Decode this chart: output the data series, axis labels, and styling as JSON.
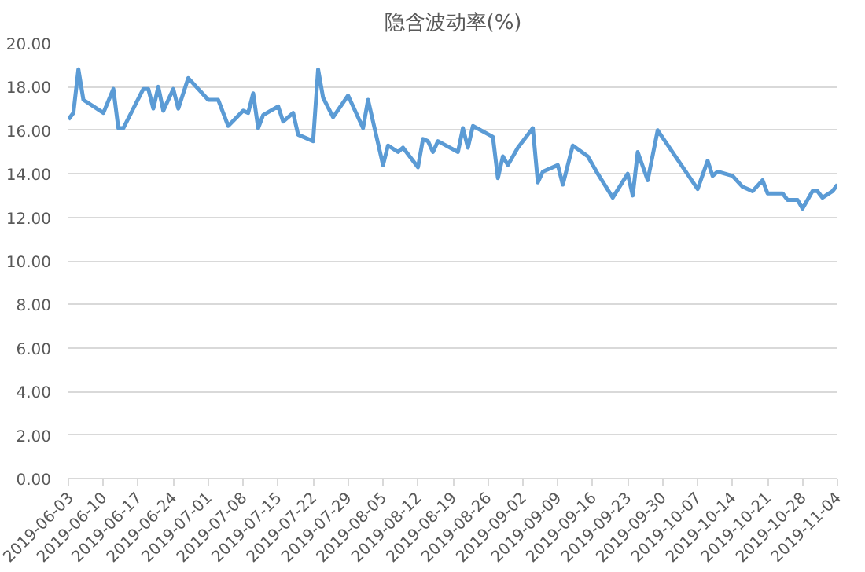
{
  "chart_data": {
    "type": "line",
    "title": "隐含波动率(%)",
    "x": [
      "2019-06-03",
      "2019-06-04",
      "2019-06-05",
      "2019-06-06",
      "2019-06-10",
      "2019-06-12",
      "2019-06-13",
      "2019-06-14",
      "2019-06-18",
      "2019-06-19",
      "2019-06-20",
      "2019-06-21",
      "2019-06-22",
      "2019-06-24",
      "2019-06-25",
      "2019-06-27",
      "2019-07-01",
      "2019-07-03",
      "2019-07-05",
      "2019-07-08",
      "2019-07-09",
      "2019-07-10",
      "2019-07-11",
      "2019-07-12",
      "2019-07-15",
      "2019-07-16",
      "2019-07-18",
      "2019-07-19",
      "2019-07-22",
      "2019-07-23",
      "2019-07-24",
      "2019-07-26",
      "2019-07-29",
      "2019-08-01",
      "2019-08-02",
      "2019-08-05",
      "2019-08-06",
      "2019-08-08",
      "2019-08-09",
      "2019-08-12",
      "2019-08-13",
      "2019-08-14",
      "2019-08-15",
      "2019-08-16",
      "2019-08-20",
      "2019-08-21",
      "2019-08-22",
      "2019-08-23",
      "2019-08-27",
      "2019-08-28",
      "2019-08-29",
      "2019-08-30",
      "2019-09-01",
      "2019-09-04",
      "2019-09-05",
      "2019-09-06",
      "2019-09-09",
      "2019-09-10",
      "2019-09-12",
      "2019-09-15",
      "2019-09-17",
      "2019-09-20",
      "2019-09-23",
      "2019-09-24",
      "2019-09-25",
      "2019-09-27",
      "2019-09-29",
      "2019-10-07",
      "2019-10-09",
      "2019-10-10",
      "2019-10-11",
      "2019-10-14",
      "2019-10-16",
      "2019-10-18",
      "2019-10-20",
      "2019-10-21",
      "2019-10-24",
      "2019-10-25",
      "2019-10-27",
      "2019-10-28",
      "2019-10-30",
      "2019-10-31",
      "2019-11-01",
      "2019-11-03",
      "2019-11-04"
    ],
    "series": [
      {
        "color": "#5b9bd5",
        "values": [
          16.5,
          16.8,
          18.8,
          17.4,
          16.8,
          17.9,
          16.1,
          16.1,
          17.9,
          17.9,
          17.0,
          18.0,
          16.9,
          17.9,
          17.0,
          18.4,
          17.4,
          17.4,
          16.2,
          16.9,
          16.8,
          17.7,
          16.1,
          16.7,
          17.1,
          16.4,
          16.8,
          15.8,
          15.5,
          18.8,
          17.5,
          16.6,
          17.6,
          16.1,
          17.4,
          14.4,
          15.3,
          15.0,
          15.2,
          14.3,
          15.6,
          15.5,
          15.0,
          15.5,
          15.0,
          16.1,
          15.2,
          16.2,
          15.7,
          13.8,
          14.8,
          14.4,
          15.2,
          16.1,
          13.6,
          14.1,
          14.4,
          13.5,
          15.3,
          14.8,
          14.0,
          12.9,
          14.0,
          13.0,
          15.0,
          13.7,
          16.0,
          13.3,
          14.6,
          13.9,
          14.1,
          13.9,
          13.4,
          13.2,
          13.7,
          13.1,
          13.1,
          12.8,
          12.8,
          12.4,
          13.2,
          13.2,
          12.9,
          13.2,
          13.5
        ]
      }
    ],
    "xlim": [
      "2019-06-03",
      "2019-11-04"
    ],
    "xticks": [
      "2019-06-03",
      "2019-06-10",
      "2019-06-17",
      "2019-06-24",
      "2019-07-01",
      "2019-07-08",
      "2019-07-15",
      "2019-07-22",
      "2019-07-29",
      "2019-08-05",
      "2019-08-12",
      "2019-08-19",
      "2019-08-26",
      "2019-09-02",
      "2019-09-09",
      "2019-09-16",
      "2019-09-23",
      "2019-09-30",
      "2019-10-07",
      "2019-10-14",
      "2019-10-21",
      "2019-10-28",
      "2019-11-04"
    ],
    "ylim": [
      0,
      20
    ],
    "yticks": [
      {
        "value": 0,
        "label": "0.00"
      },
      {
        "value": 2,
        "label": "2.00"
      },
      {
        "value": 4,
        "label": "4.00"
      },
      {
        "value": 6,
        "label": "6.00"
      },
      {
        "value": 8,
        "label": "8.00"
      },
      {
        "value": 10,
        "label": "10.00"
      },
      {
        "value": 12,
        "label": "12.00"
      },
      {
        "value": 14,
        "label": "14.00"
      },
      {
        "value": 16,
        "label": "16.00"
      },
      {
        "value": 18,
        "label": "18.00"
      },
      {
        "value": 20,
        "label": "20.00"
      }
    ],
    "grid": "y",
    "marker": "none",
    "line_style": "solid"
  }
}
